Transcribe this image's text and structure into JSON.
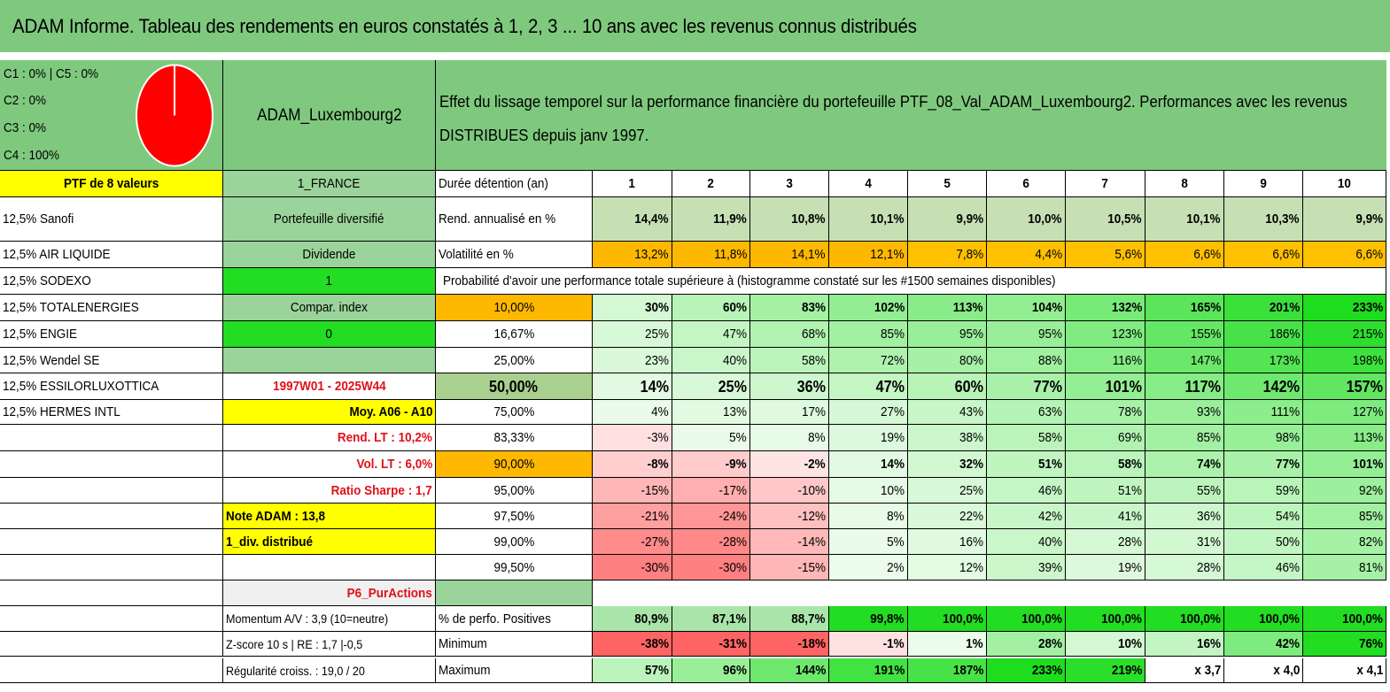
{
  "title": "ADAM Informe. Tableau des rendements en euros constatés à 1, 2, 3 ... 10 ans avec les revenus connus distribués",
  "legend": {
    "line1": "C1 : 0% | C5 : 0%",
    "line2": "C2 : 0%",
    "line3": "C3 : 0%",
    "line4": "C4 : 100%",
    "pie_color": "#ff0000"
  },
  "portfolio_name": "ADAM_Luxembourg2",
  "description": "Effet du lissage temporel sur la performance financière du portefeuille PTF_08_Val_ADAM_Luxembourg2. Performances avec les revenus DISTRIBUES depuis janv 1997.",
  "ptf_count": "PTF de 8 valeurs",
  "holdings": [
    "12,5% Sanofi",
    "12,5% AIR LIQUIDE",
    "12,5% SODEXO",
    "12,5% TOTALENERGIES",
    "12,5% ENGIE",
    "12,5% Wendel SE",
    "12,5% ESSILORLUXOTTICA",
    "12,5% HERMES INTL"
  ],
  "info": {
    "country": "1_FRANCE",
    "type": "Portefeuille diversifié",
    "dividend_label": "Dividende",
    "dividend_value": "1",
    "compar_label": "Compar. index",
    "compar_value": "0",
    "period": "1997W01 - 2025W44",
    "moy": "Moy. A06 - A10",
    "rend_lt": "Rend. LT : 10,2%",
    "vol_lt": "Vol. LT : 6,0%",
    "sharpe": "Ratio Sharpe : 1,7",
    "note": "Note ADAM : 13,8",
    "div": "1_div. distribué",
    "p6": "P6_PurActions",
    "momentum": "Momentum A/V : 3,9 (10=neutre)",
    "zscore": "Z-score 10 s | RE : 1,7 |-0,5",
    "regularite": "Régularité croiss. : 19,0 / 20"
  },
  "table": {
    "duration_label": "Durée détention (an)",
    "years": [
      "1",
      "2",
      "3",
      "4",
      "5",
      "6",
      "7",
      "8",
      "9",
      "10"
    ],
    "rend_label": "Rend. annualisé en %",
    "rend": [
      "14,4%",
      "11,9%",
      "10,8%",
      "10,1%",
      "9,9%",
      "10,0%",
      "10,5%",
      "10,1%",
      "10,3%",
      "9,9%"
    ],
    "vol_label": "Volatilité en %",
    "vol": [
      "13,2%",
      "11,8%",
      "14,1%",
      "12,1%",
      "7,8%",
      "4,4%",
      "5,6%",
      "6,6%",
      "6,6%",
      "6,6%"
    ],
    "prob_label": "Probabilité d'avoir une performance totale supérieure à (histogramme constaté sur les #1500 semaines disponibles)",
    "prob_rows": [
      {
        "level": "10,00%",
        "values": [
          "30%",
          "60%",
          "83%",
          "102%",
          "113%",
          "104%",
          "132%",
          "165%",
          "201%",
          "233%"
        ]
      },
      {
        "level": "16,67%",
        "values": [
          "25%",
          "47%",
          "68%",
          "85%",
          "95%",
          "95%",
          "123%",
          "155%",
          "186%",
          "215%"
        ]
      },
      {
        "level": "25,00%",
        "values": [
          "23%",
          "40%",
          "58%",
          "72%",
          "80%",
          "88%",
          "116%",
          "147%",
          "173%",
          "198%"
        ]
      },
      {
        "level": "50,00%",
        "values": [
          "14%",
          "25%",
          "36%",
          "47%",
          "60%",
          "77%",
          "101%",
          "117%",
          "142%",
          "157%"
        ]
      },
      {
        "level": "75,00%",
        "values": [
          "4%",
          "13%",
          "17%",
          "27%",
          "43%",
          "63%",
          "78%",
          "93%",
          "111%",
          "127%"
        ]
      },
      {
        "level": "83,33%",
        "values": [
          "-3%",
          "5%",
          "8%",
          "19%",
          "38%",
          "58%",
          "69%",
          "85%",
          "98%",
          "113%"
        ]
      },
      {
        "level": "90,00%",
        "values": [
          "-8%",
          "-9%",
          "-2%",
          "14%",
          "32%",
          "51%",
          "58%",
          "74%",
          "77%",
          "101%"
        ]
      },
      {
        "level": "95,00%",
        "values": [
          "-15%",
          "-17%",
          "-10%",
          "10%",
          "25%",
          "46%",
          "51%",
          "55%",
          "59%",
          "92%"
        ]
      },
      {
        "level": "97,50%",
        "values": [
          "-21%",
          "-24%",
          "-12%",
          "8%",
          "22%",
          "42%",
          "41%",
          "36%",
          "54%",
          "85%"
        ]
      },
      {
        "level": "99,00%",
        "values": [
          "-27%",
          "-28%",
          "-14%",
          "5%",
          "16%",
          "40%",
          "28%",
          "31%",
          "50%",
          "82%"
        ]
      },
      {
        "level": "99,50%",
        "values": [
          "-30%",
          "-30%",
          "-15%",
          "2%",
          "12%",
          "39%",
          "19%",
          "28%",
          "46%",
          "81%"
        ]
      }
    ],
    "pos_label": "% de perfo. Positives",
    "pos": [
      "80,9%",
      "87,1%",
      "88,7%",
      "99,8%",
      "100,0%",
      "100,0%",
      "100,0%",
      "100,0%",
      "100,0%",
      "100,0%"
    ],
    "min_label": "Minimum",
    "min": [
      "-38%",
      "-31%",
      "-18%",
      "-1%",
      "1%",
      "28%",
      "10%",
      "16%",
      "42%",
      "76%"
    ],
    "max_label": "Maximum",
    "max": [
      "57%",
      "96%",
      "144%",
      "191%",
      "187%",
      "233%",
      "219%",
      "x 3,7",
      "x 4,0",
      "x 4,1"
    ]
  }
}
